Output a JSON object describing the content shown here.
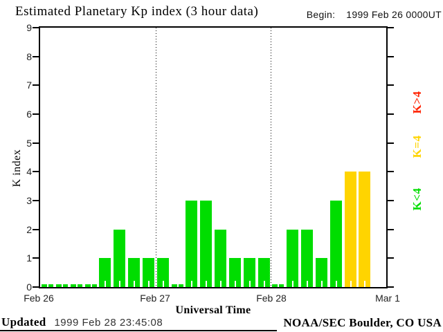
{
  "title": "Estimated Planetary Kp index (3 hour data)",
  "begin": {
    "label": "Begin:",
    "value": "1999 Feb 26 0000UT"
  },
  "chart_data": {
    "type": "bar",
    "title": "Estimated Planetary Kp index (3 hour data)",
    "xlabel": "Universal Time",
    "ylabel": "K index",
    "ylim": [
      0,
      9
    ],
    "y_ticks": [
      0,
      1,
      2,
      3,
      4,
      5,
      6,
      7,
      8,
      9
    ],
    "x_tick_labels": [
      "Feb 26",
      "Feb 27",
      "Feb 28",
      "Mar 1"
    ],
    "hours_per_bar": 3,
    "days": [
      {
        "date": "Feb 26",
        "values": [
          0,
          0,
          0,
          0,
          1,
          2,
          1,
          1
        ]
      },
      {
        "date": "Feb 27",
        "values": [
          1,
          0,
          3,
          3,
          2,
          1,
          1,
          1
        ]
      },
      {
        "date": "Feb 28",
        "values": [
          0,
          2,
          2,
          1,
          3,
          4,
          4,
          null
        ]
      }
    ],
    "colors": {
      "k_lt_4": "#00dd00",
      "k_eq_4": "#ffd400",
      "k_gt_4": "#ff2200"
    },
    "legend": [
      {
        "label": "K>4",
        "color": "#ff2200"
      },
      {
        "label": "K=4",
        "color": "#ffd400"
      },
      {
        "label": "K<4",
        "color": "#00dd00"
      }
    ],
    "grid": "dotted vertical lines at day boundaries",
    "legend_position": "right"
  },
  "footer": {
    "updated_label": "Updated",
    "updated_value": "1999 Feb 28 23:45:08",
    "credit": "NOAA/SEC Boulder, CO USA"
  }
}
